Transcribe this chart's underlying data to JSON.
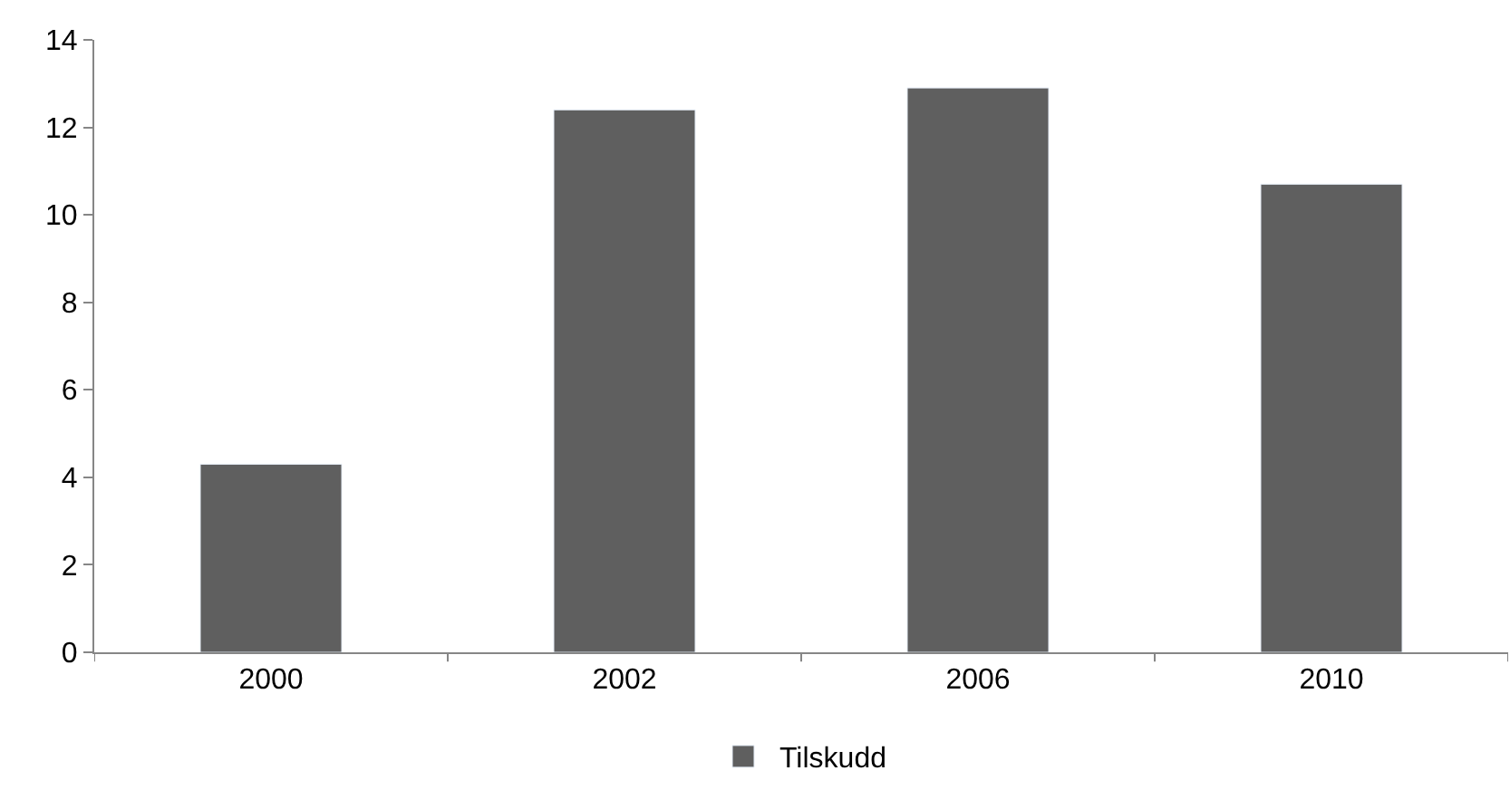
{
  "chart_data": {
    "type": "bar",
    "categories": [
      "2000",
      "2002",
      "2006",
      "2010"
    ],
    "series": [
      {
        "name": "Tilskudd",
        "color": "#5f5f5f",
        "values": [
          4.3,
          12.4,
          12.9,
          10.7
        ]
      }
    ],
    "ylim": [
      0,
      14
    ],
    "yticks": [
      0,
      2,
      4,
      6,
      8,
      10,
      12,
      14
    ],
    "legend": "bottom"
  }
}
